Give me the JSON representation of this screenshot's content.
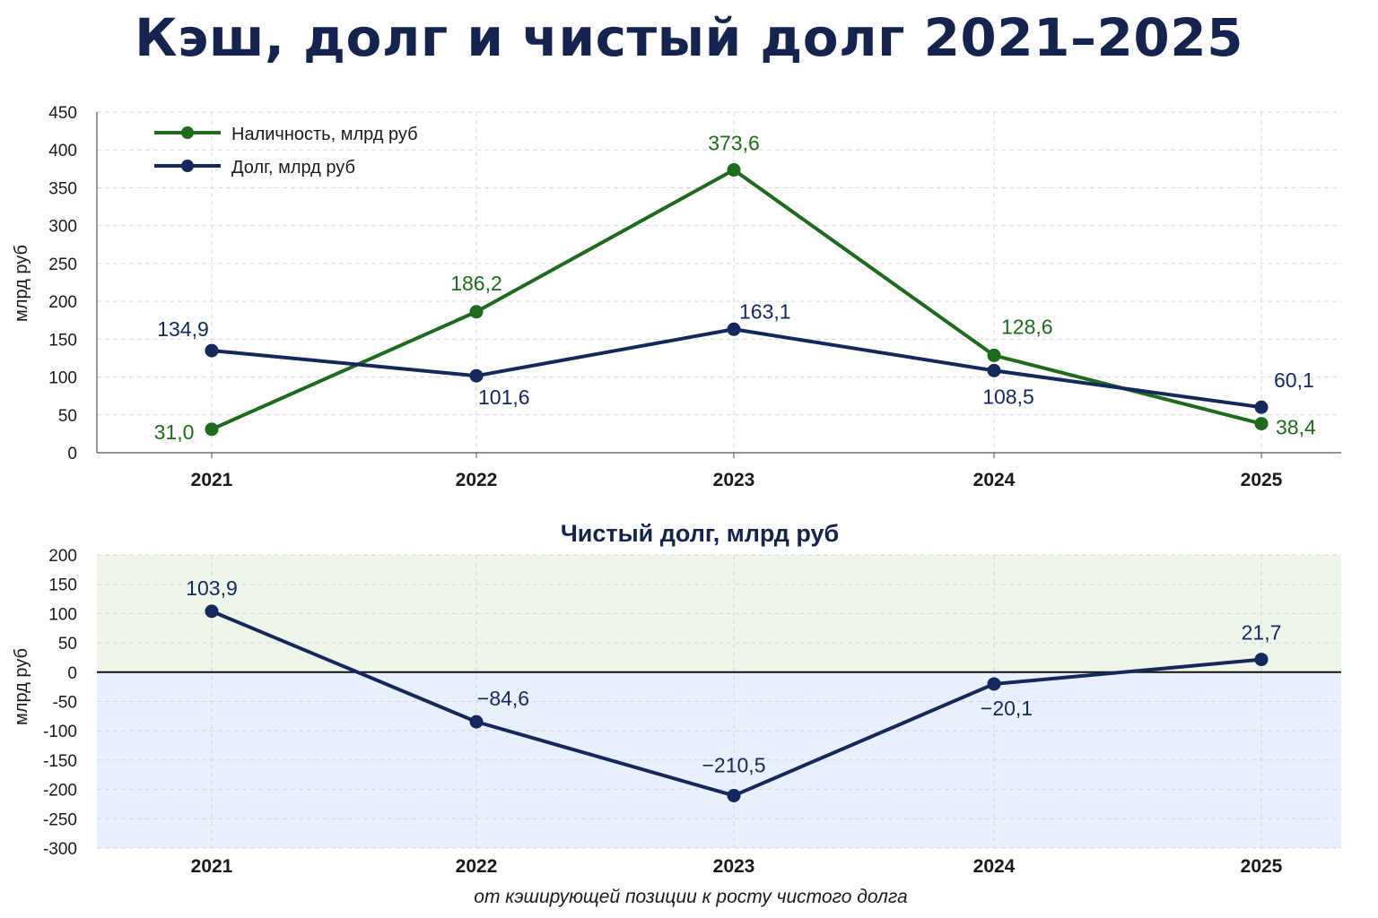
{
  "title": "Кэш, долг и чистый долг 2021–2025",
  "colors": {
    "cash": "#1e6b1e",
    "debt": "#14285e",
    "positive_zone": "#eef6e9",
    "negative_zone": "#e7f0fc",
    "title": "#14244f"
  },
  "chart_data": [
    {
      "type": "line",
      "categories": [
        "2021",
        "2022",
        "2023",
        "2024",
        "2025"
      ],
      "series": [
        {
          "name": "Наличность, млрд руб",
          "values": [
            31.0,
            186.2,
            373.6,
            128.6,
            38.4
          ],
          "labels": [
            "31,0",
            "186,2",
            "373,6",
            "128,6",
            "38,4"
          ]
        },
        {
          "name": "Долг, млрд руб",
          "values": [
            134.9,
            101.6,
            163.1,
            108.5,
            60.1
          ],
          "labels": [
            "134,9",
            "101,6",
            "163,1",
            "108,5",
            "60,1"
          ]
        }
      ],
      "title": "",
      "xlabel": "",
      "ylabel": "млрд руб",
      "ylim": [
        0,
        450
      ],
      "yticks": [
        "0",
        "50",
        "100",
        "150",
        "200",
        "250",
        "300",
        "350",
        "400",
        "450"
      ],
      "grid": true,
      "legend": "top-left"
    },
    {
      "type": "line",
      "categories": [
        "2021",
        "2022",
        "2023",
        "2024",
        "2025"
      ],
      "series": [
        {
          "values": [
            103.9,
            -84.6,
            -210.5,
            -20.1,
            21.7
          ],
          "labels": [
            "103,9",
            "−84,6",
            "−210,5",
            "−20,1",
            "21,7"
          ]
        }
      ],
      "title": "Чистый долг, млрд руб",
      "xlabel": "от кэширующей позиции к росту чистого долга",
      "ylabel": "млрд руб",
      "ylim": [
        -300,
        200
      ],
      "yticks": [
        "200",
        "150",
        "100",
        "50",
        "0",
        "-50",
        "-100",
        "-150",
        "-200",
        "-250",
        "-300"
      ],
      "grid": true,
      "zero_line": true
    }
  ]
}
